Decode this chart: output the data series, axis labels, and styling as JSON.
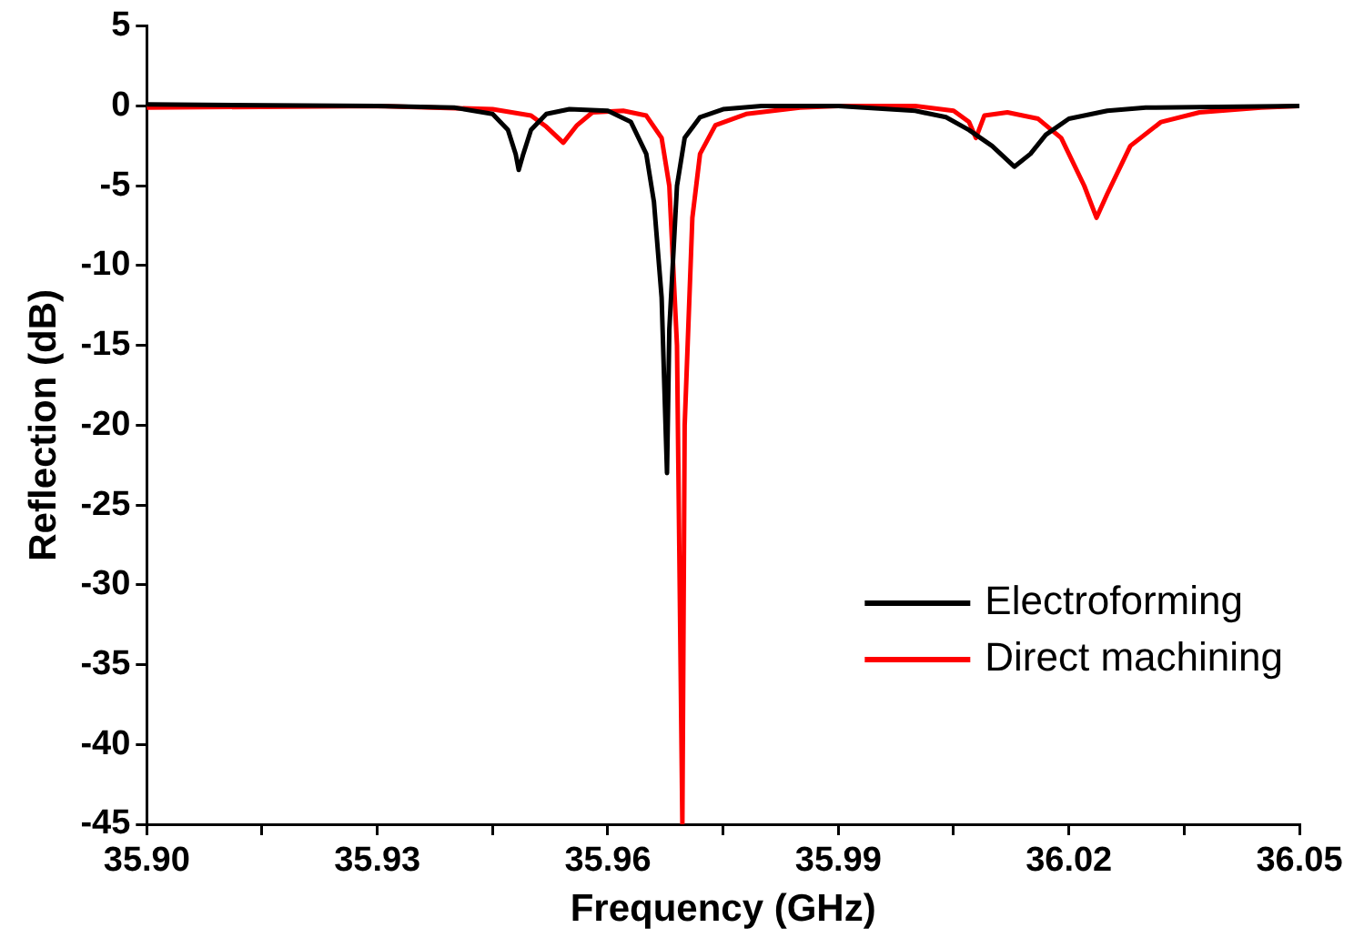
{
  "chart_data": {
    "type": "line",
    "xlabel": "Frequency (GHz)",
    "ylabel": "Reflection (dB)",
    "xlim": [
      35.9,
      36.05
    ],
    "xticks": [
      {
        "value": 35.9,
        "label": "35.90"
      },
      {
        "value": 35.915,
        "label": null
      },
      {
        "value": 35.93,
        "label": "35.93"
      },
      {
        "value": 35.945,
        "label": null
      },
      {
        "value": 35.96,
        "label": "35.96"
      },
      {
        "value": 35.975,
        "label": null
      },
      {
        "value": 35.99,
        "label": "35.99"
      },
      {
        "value": 36.005,
        "label": null
      },
      {
        "value": 36.02,
        "label": "36.02"
      },
      {
        "value": 36.035,
        "label": null
      },
      {
        "value": 36.05,
        "label": "36.05"
      }
    ],
    "ylim": [
      -45,
      5
    ],
    "yticks": [
      -45,
      -40,
      -35,
      -30,
      -25,
      -20,
      -15,
      -10,
      -5,
      0,
      5
    ],
    "grid": false,
    "legend": "bottom right",
    "marker": "none",
    "line_style": "solid",
    "series": [
      {
        "name": "Electroforming",
        "color": "#000000",
        "x": [
          35.9,
          35.93,
          35.94,
          35.945,
          35.947,
          35.948,
          35.9484,
          35.949,
          35.95,
          35.952,
          35.955,
          35.96,
          35.963,
          35.965,
          35.966,
          35.967,
          35.9677,
          35.968,
          35.969,
          35.97,
          35.972,
          35.975,
          35.98,
          35.99,
          36.0,
          36.004,
          36.007,
          36.01,
          36.0129,
          36.015,
          36.017,
          36.02,
          36.025,
          36.03,
          36.05
        ],
        "values": [
          0.1,
          0,
          -0.1,
          -0.5,
          -1.5,
          -3,
          -4,
          -3,
          -1.5,
          -0.5,
          -0.2,
          -0.3,
          -1,
          -3,
          -6,
          -12,
          -23,
          -14,
          -5,
          -2,
          -0.7,
          -0.2,
          0,
          0,
          -0.3,
          -0.7,
          -1.5,
          -2.5,
          -3.8,
          -3,
          -1.8,
          -0.8,
          -0.3,
          -0.1,
          0
        ]
      },
      {
        "name": "Direct machining",
        "color": "#ff0000",
        "x": [
          35.9,
          35.93,
          35.945,
          35.95,
          35.952,
          35.9542,
          35.956,
          35.958,
          35.962,
          35.965,
          35.967,
          35.968,
          35.969,
          35.9697,
          35.97,
          35.971,
          35.972,
          35.974,
          35.978,
          35.985,
          35.99,
          36.0,
          36.005,
          36.007,
          36.0079,
          36.009,
          36.012,
          36.016,
          36.019,
          36.022,
          36.0236,
          36.025,
          36.028,
          36.032,
          36.037,
          36.045,
          36.05
        ],
        "values": [
          -0.1,
          0,
          -0.2,
          -0.6,
          -1.3,
          -2.3,
          -1.2,
          -0.4,
          -0.3,
          -0.6,
          -2,
          -5,
          -15,
          -45,
          -20,
          -7,
          -3,
          -1.2,
          -0.5,
          -0.1,
          0,
          0,
          -0.3,
          -1,
          -2,
          -0.6,
          -0.4,
          -0.8,
          -2,
          -5,
          -7,
          -5.5,
          -2.5,
          -1,
          -0.4,
          -0.1,
          0
        ]
      }
    ]
  }
}
